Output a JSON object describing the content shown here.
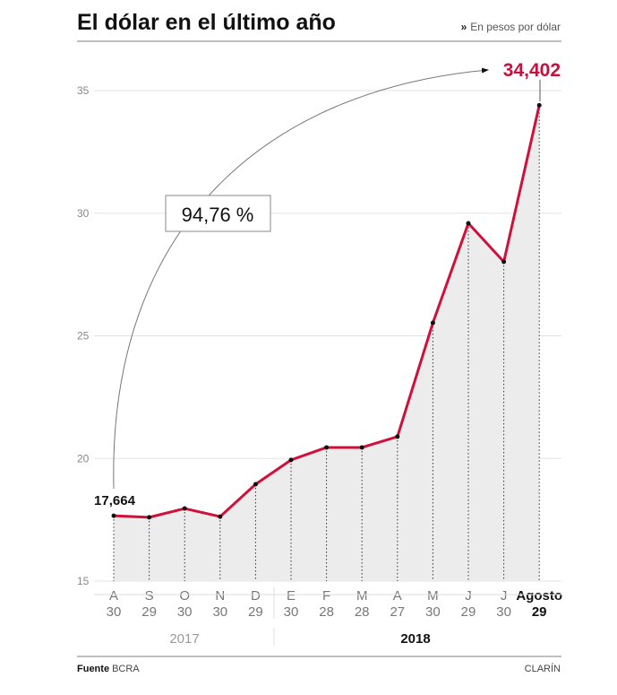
{
  "header": {
    "title": "El dólar en el último año",
    "subtitle_marker": "»",
    "subtitle": "En pesos por dólar"
  },
  "footer": {
    "source_label": "Fuente",
    "source": "BCRA",
    "brand": "CLARÍN"
  },
  "colors": {
    "line": "#d0103a",
    "area": "#ececec",
    "highlight": "#c8103e"
  },
  "chart_data": {
    "type": "area",
    "title": "El dólar en el último año",
    "ylabel": "En pesos por dólar",
    "ylim": [
      15,
      35
    ],
    "yticks": [
      15,
      20,
      25,
      30,
      35
    ],
    "grid": true,
    "categories": [
      {
        "month": "A",
        "day": "30"
      },
      {
        "month": "S",
        "day": "29"
      },
      {
        "month": "O",
        "day": "30"
      },
      {
        "month": "N",
        "day": "30"
      },
      {
        "month": "D",
        "day": "29"
      },
      {
        "month": "E",
        "day": "30"
      },
      {
        "month": "F",
        "day": "28"
      },
      {
        "month": "M",
        "day": "28"
      },
      {
        "month": "A",
        "day": "27"
      },
      {
        "month": "M",
        "day": "30"
      },
      {
        "month": "J",
        "day": "29"
      },
      {
        "month": "J",
        "day": "30"
      },
      {
        "month": "Agosto",
        "day": "29"
      }
    ],
    "values": [
      17.664,
      17.6,
      17.96,
      17.63,
      18.95,
      19.94,
      20.45,
      20.45,
      20.89,
      25.53,
      29.59,
      28.02,
      34.402
    ],
    "years": [
      {
        "label": "2017",
        "count": 5
      },
      {
        "label": "2018",
        "count": 8
      }
    ],
    "annotations": {
      "start_label": "17,664",
      "end_label": "34,402",
      "change_label": "94,76 %"
    }
  }
}
